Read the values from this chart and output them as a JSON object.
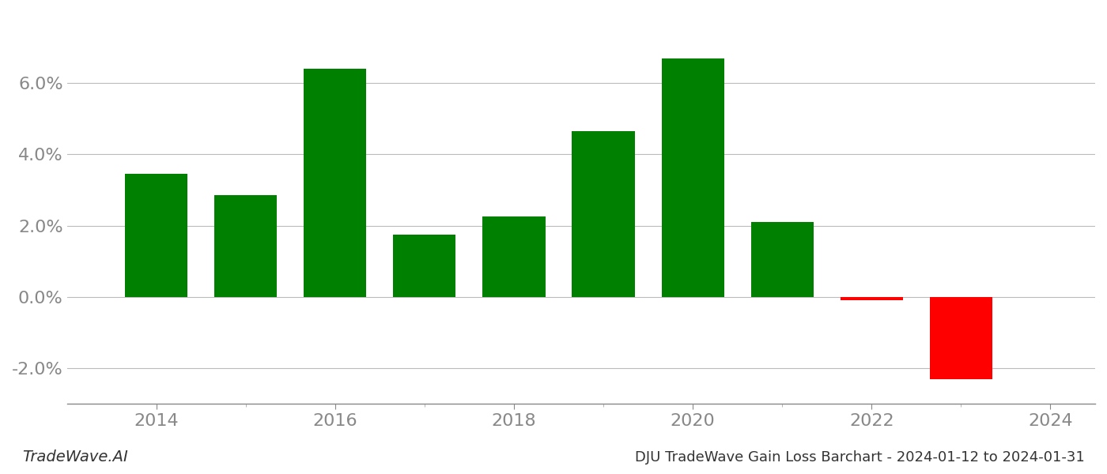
{
  "years": [
    2014,
    2015,
    2016,
    2017,
    2018,
    2019,
    2020,
    2021,
    2022,
    2023
  ],
  "values": [
    0.0345,
    0.0285,
    0.064,
    0.0175,
    0.0225,
    0.0465,
    0.067,
    0.021,
    -0.001,
    -0.023
  ],
  "color_positive": "#008000",
  "color_negative": "#ff0000",
  "background_color": "#ffffff",
  "grid_color": "#bbbbbb",
  "title": "DJU TradeWave Gain Loss Barchart - 2024-01-12 to 2024-01-31",
  "watermark": "TradeWave.AI",
  "ylim": [
    -0.03,
    0.08
  ],
  "yticks": [
    -0.02,
    0.0,
    0.02,
    0.04,
    0.06
  ],
  "xtick_labels": [
    2014,
    2016,
    2018,
    2020,
    2022,
    2024
  ],
  "xtick_fontsize": 16,
  "ytick_fontsize": 16,
  "title_fontsize": 13,
  "watermark_fontsize": 14,
  "bar_width": 0.7
}
